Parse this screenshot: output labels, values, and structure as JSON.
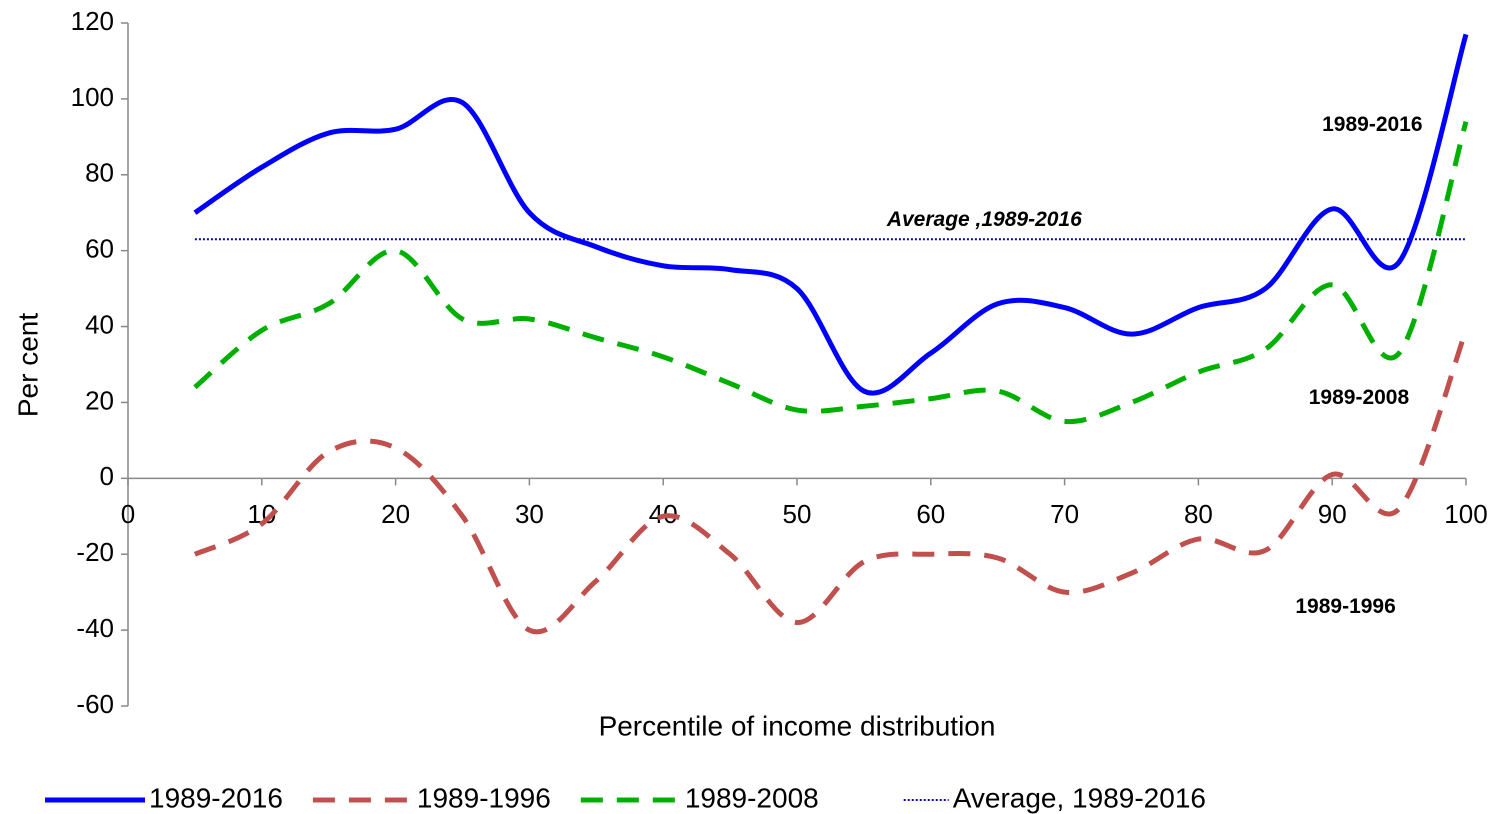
{
  "chart_data": {
    "type": "line",
    "xlabel": "Percentile of income distribution",
    "ylabel": "Per cent",
    "x": [
      5,
      10,
      15,
      20,
      25,
      30,
      35,
      40,
      45,
      50,
      55,
      60,
      65,
      70,
      75,
      80,
      85,
      90,
      95,
      100
    ],
    "series": [
      {
        "name": "1989-2016",
        "color": "#0000ff",
        "dash": "solid",
        "values": [
          70,
          82,
          91,
          92,
          99,
          70,
          61,
          56,
          55,
          50,
          23,
          33,
          46,
          45,
          38,
          45,
          50,
          71,
          57,
          117
        ]
      },
      {
        "name": "1989-1996",
        "color": "#c0504d",
        "dash": "dashed",
        "values": [
          -20,
          -12,
          7,
          8,
          -10,
          -40,
          -27,
          -10,
          -20,
          -38,
          -22,
          -20,
          -21,
          -30,
          -25,
          -16,
          -19,
          1,
          -8,
          39
        ]
      },
      {
        "name": "1989-2008",
        "color": "#00b000",
        "dash": "dashed",
        "values": [
          24,
          39,
          46,
          60,
          42,
          42,
          37,
          32,
          25,
          18,
          19,
          21,
          23,
          15,
          20,
          28,
          34,
          51,
          33,
          94
        ]
      }
    ],
    "reference_line": {
      "name": "Average, 1989-2016",
      "color": "#0000cc",
      "value": 63
    },
    "annotations": [
      {
        "text": "1989-2016",
        "x": 93,
        "y": 93,
        "color": "#0000ff"
      },
      {
        "text": "Average ,1989-2016",
        "x": 64,
        "y": 68,
        "color": "#0000cc",
        "italic": true
      },
      {
        "text": "1989-2008",
        "x": 92,
        "y": 21,
        "color": "#00b000"
      },
      {
        "text": "1989-1996",
        "x": 91,
        "y": -34,
        "color": "#c0504d"
      }
    ],
    "xlim": [
      0,
      100
    ],
    "xticks": [
      0,
      10,
      20,
      30,
      40,
      50,
      60,
      70,
      80,
      90,
      100
    ],
    "ylim": [
      -60,
      120
    ],
    "yticks": [
      -60,
      -40,
      -20,
      0,
      20,
      40,
      60,
      80,
      100,
      120
    ],
    "legend": "bottom"
  }
}
